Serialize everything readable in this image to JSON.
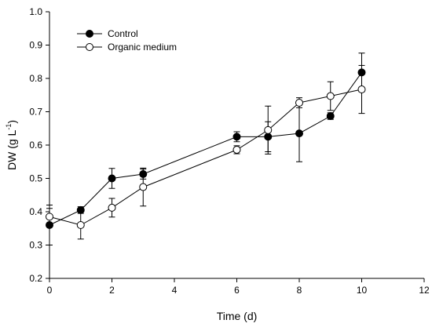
{
  "chart_data": {
    "type": "line",
    "xlabel": "Time (d)",
    "ylabel_main": "DW (g L",
    "ylabel_sup": "-1",
    "ylabel_close": ")",
    "xlim": [
      0,
      12
    ],
    "ylim": [
      0.2,
      1.0
    ],
    "xticks": [
      0,
      2,
      4,
      6,
      8,
      10,
      12
    ],
    "yticks": [
      0.2,
      0.3,
      0.4,
      0.5,
      0.6,
      0.7,
      0.8,
      0.9,
      1.0
    ],
    "xtick_labels": [
      "0",
      "2",
      "4",
      "6",
      "8",
      "10",
      "12"
    ],
    "ytick_labels": [
      "0.2",
      "0.3",
      "0.4",
      "0.5",
      "0.6",
      "0.7",
      "0.8",
      "0.9",
      "1.0"
    ],
    "grid": false,
    "legend_position": "top-left",
    "series": [
      {
        "name": "Control",
        "marker": "filled-circle",
        "color": "#000000",
        "x": [
          0,
          1,
          2,
          3,
          6,
          7,
          8,
          9,
          10
        ],
        "y": [
          0.36,
          0.405,
          0.5,
          0.513,
          0.625,
          0.625,
          0.635,
          0.687,
          0.818
        ],
        "err": [
          0.06,
          0.01,
          0.03,
          0.015,
          0.015,
          0.045,
          0.085,
          0.01,
          0.058
        ]
      },
      {
        "name": "Organic medium",
        "marker": "open-circle",
        "color": "#000000",
        "x": [
          0,
          1,
          2,
          3,
          6,
          7,
          8,
          9,
          10
        ],
        "y": [
          0.385,
          0.36,
          0.412,
          0.474,
          0.586,
          0.645,
          0.727,
          0.747,
          0.767
        ],
        "err": [
          0.025,
          0.042,
          0.028,
          0.057,
          0.012,
          0.072,
          0.015,
          0.043,
          0.072
        ]
      }
    ]
  }
}
